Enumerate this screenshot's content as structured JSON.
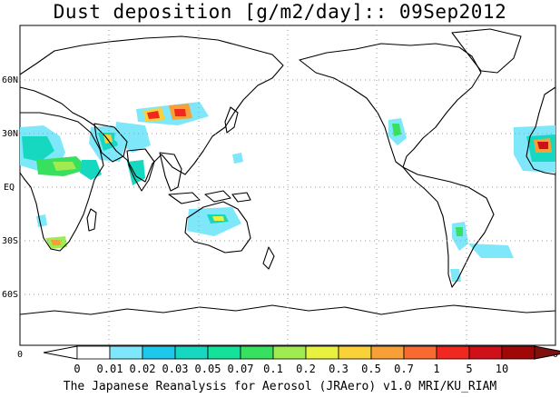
{
  "title": "Dust deposition [g/m2/day]:: 09Sep2012",
  "credit": "The Japanese Reanalysis for Aerosol (JRAero) v1.0 MRI/KU_RIAM",
  "lat_labels": [
    "60N",
    "30N",
    "EQ",
    "30S",
    "60S"
  ],
  "lat_values": [
    60,
    30,
    0,
    -30,
    -60
  ],
  "lon_edge_labels": [
    "0",
    "0"
  ],
  "colorbar": {
    "labels": [
      "0",
      "0.01",
      "0.02",
      "0.03",
      "0.05",
      "0.07",
      "0.1",
      "0.2",
      "0.3",
      "0.5",
      "0.7",
      "1",
      "5",
      "10"
    ],
    "colors": [
      "#ffffff",
      "#ffffff",
      "#7ee8fa",
      "#1ec8ea",
      "#16d8c0",
      "#14e29a",
      "#38e060",
      "#a0ec50",
      "#e8f040",
      "#f8d238",
      "#f8a038",
      "#f86a30",
      "#f02820",
      "#d01018",
      "#a00808",
      "#801010"
    ]
  },
  "legend_colors": {
    "low": "#7ee8fa",
    "mid": "#16d8c0",
    "green": "#38e060",
    "yellow": "#e8f040",
    "orange": "#f8a038",
    "red": "#f02820",
    "darkred": "#a00808"
  }
}
